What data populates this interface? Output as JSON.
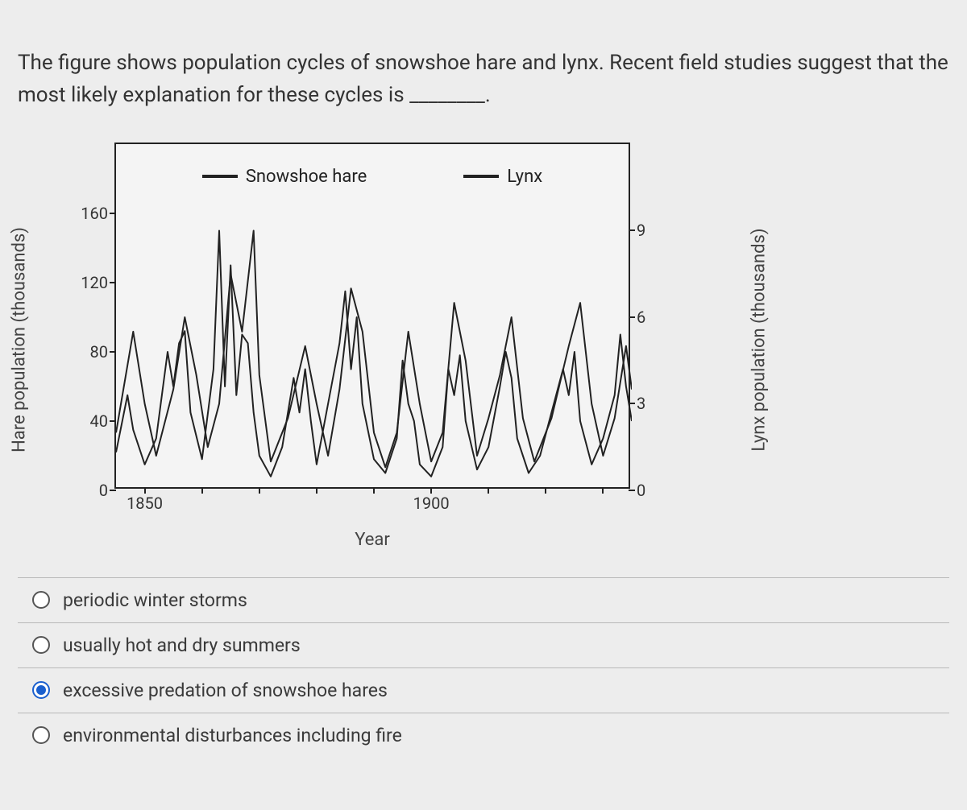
{
  "question": {
    "text": "The figure shows population cycles of snowshoe hare and lynx. Recent field studies suggest that the most likely explanation for these cycles is ________."
  },
  "chart": {
    "type": "line",
    "y_left_label": "Hare population (thousands)",
    "y_right_label": "Lynx population (thousands)",
    "x_label": "Year",
    "x_min": 1845,
    "x_max": 1935,
    "x_ticks": [
      1850,
      1900
    ],
    "y_left_min": 0,
    "y_left_max": 200,
    "y_left_ticks": [
      0,
      40,
      80,
      120,
      160
    ],
    "y_right_min": 0,
    "y_right_max": 12,
    "y_right_ticks": [
      0,
      3,
      6,
      9
    ],
    "background_color": "#f4f4f4",
    "border_color": "#222222",
    "line_color": "#222222",
    "line_width": 2.0,
    "legend_items": [
      {
        "label": "Snowshoe hare"
      },
      {
        "label": "Lynx"
      }
    ],
    "series": [
      {
        "name": "Snowshoe hare",
        "axis": "left",
        "points": [
          [
            1845,
            22
          ],
          [
            1847,
            55
          ],
          [
            1848,
            35
          ],
          [
            1850,
            15
          ],
          [
            1852,
            30
          ],
          [
            1854,
            80
          ],
          [
            1855,
            60
          ],
          [
            1856,
            85
          ],
          [
            1857,
            92
          ],
          [
            1858,
            45
          ],
          [
            1860,
            18
          ],
          [
            1862,
            70
          ],
          [
            1863,
            150
          ],
          [
            1864,
            60
          ],
          [
            1865,
            130
          ],
          [
            1866,
            55
          ],
          [
            1867,
            90
          ],
          [
            1868,
            85
          ],
          [
            1869,
            45
          ],
          [
            1870,
            20
          ],
          [
            1872,
            8
          ],
          [
            1874,
            25
          ],
          [
            1876,
            65
          ],
          [
            1877,
            45
          ],
          [
            1878,
            70
          ],
          [
            1879,
            40
          ],
          [
            1880,
            15
          ],
          [
            1882,
            50
          ],
          [
            1884,
            85
          ],
          [
            1885,
            115
          ],
          [
            1886,
            70
          ],
          [
            1887,
            100
          ],
          [
            1888,
            50
          ],
          [
            1890,
            18
          ],
          [
            1892,
            10
          ],
          [
            1894,
            30
          ],
          [
            1895,
            75
          ],
          [
            1896,
            50
          ],
          [
            1897,
            40
          ],
          [
            1898,
            15
          ],
          [
            1900,
            8
          ],
          [
            1902,
            25
          ],
          [
            1903,
            70
          ],
          [
            1904,
            55
          ],
          [
            1905,
            78
          ],
          [
            1906,
            40
          ],
          [
            1908,
            12
          ],
          [
            1910,
            25
          ],
          [
            1912,
            60
          ],
          [
            1913,
            80
          ],
          [
            1914,
            65
          ],
          [
            1915,
            30
          ],
          [
            1917,
            10
          ],
          [
            1919,
            20
          ],
          [
            1921,
            45
          ],
          [
            1923,
            70
          ],
          [
            1924,
            55
          ],
          [
            1925,
            80
          ],
          [
            1926,
            40
          ],
          [
            1928,
            15
          ],
          [
            1930,
            30
          ],
          [
            1932,
            55
          ],
          [
            1933,
            90
          ],
          [
            1934,
            60
          ],
          [
            1935,
            40
          ]
        ]
      },
      {
        "name": "Lynx",
        "axis": "right",
        "points": [
          [
            1845,
            2.0
          ],
          [
            1848,
            5.5
          ],
          [
            1850,
            3.0
          ],
          [
            1852,
            1.2
          ],
          [
            1855,
            3.5
          ],
          [
            1857,
            6.0
          ],
          [
            1859,
            4.0
          ],
          [
            1861,
            1.5
          ],
          [
            1863,
            3.0
          ],
          [
            1865,
            7.5
          ],
          [
            1867,
            5.5
          ],
          [
            1869,
            9.0
          ],
          [
            1870,
            4.0
          ],
          [
            1872,
            1.0
          ],
          [
            1875,
            2.5
          ],
          [
            1878,
            5.0
          ],
          [
            1880,
            3.0
          ],
          [
            1882,
            1.2
          ],
          [
            1884,
            3.5
          ],
          [
            1886,
            7.0
          ],
          [
            1888,
            5.5
          ],
          [
            1890,
            2.0
          ],
          [
            1892,
            0.8
          ],
          [
            1894,
            2.0
          ],
          [
            1896,
            5.5
          ],
          [
            1898,
            3.0
          ],
          [
            1900,
            1.0
          ],
          [
            1902,
            2.0
          ],
          [
            1904,
            6.5
          ],
          [
            1906,
            4.5
          ],
          [
            1908,
            1.2
          ],
          [
            1910,
            2.5
          ],
          [
            1912,
            4.0
          ],
          [
            1914,
            6.0
          ],
          [
            1916,
            2.5
          ],
          [
            1918,
            1.0
          ],
          [
            1921,
            2.5
          ],
          [
            1924,
            5.0
          ],
          [
            1926,
            6.5
          ],
          [
            1928,
            3.0
          ],
          [
            1930,
            1.2
          ],
          [
            1932,
            2.5
          ],
          [
            1934,
            5.0
          ],
          [
            1935,
            3.5
          ]
        ]
      }
    ]
  },
  "options": [
    {
      "label": "periodic winter storms",
      "selected": false
    },
    {
      "label": "usually hot and dry summers",
      "selected": false
    },
    {
      "label": "excessive predation of snowshoe hares",
      "selected": true
    },
    {
      "label": "environmental disturbances including fire",
      "selected": false
    }
  ]
}
